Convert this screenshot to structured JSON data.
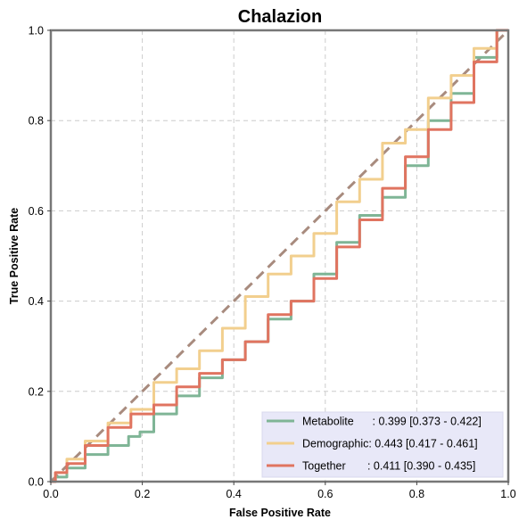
{
  "chart_data": {
    "type": "line",
    "title": "Chalazion",
    "xlabel": "False Positive Rate",
    "ylabel": "True Positive Rate",
    "xlim": [
      0,
      1
    ],
    "ylim": [
      0,
      1
    ],
    "xticks": [
      "0.0",
      "0.2",
      "0.4",
      "0.6",
      "0.8",
      "1.0"
    ],
    "yticks": [
      "0.0",
      "0.2",
      "0.4",
      "0.6",
      "0.8",
      "1.0"
    ],
    "grid": true,
    "legend_position": "lower-right",
    "diagonal": {
      "x": [
        0,
        1
      ],
      "y": [
        0,
        1
      ],
      "color": "#a88b7e",
      "style": "dashed"
    },
    "series": [
      {
        "name": "Metabolite",
        "legend_label": "Metabolite      : 0.399 [0.373 - 0.422]",
        "color": "#7fb596",
        "x": [
          0,
          0.02,
          0.05,
          0.1,
          0.15,
          0.19,
          0.2,
          0.25,
          0.3,
          0.35,
          0.4,
          0.45,
          0.5,
          0.55,
          0.6,
          0.65,
          0.7,
          0.75,
          0.8,
          0.85,
          0.9,
          0.95,
          1.0
        ],
        "y": [
          0,
          0.01,
          0.03,
          0.06,
          0.08,
          0.1,
          0.11,
          0.15,
          0.19,
          0.23,
          0.27,
          0.31,
          0.36,
          0.4,
          0.46,
          0.53,
          0.59,
          0.63,
          0.7,
          0.8,
          0.86,
          0.94,
          1.0
        ]
      },
      {
        "name": "Demographic",
        "legend_label": "Demographic: 0.443 [0.417 - 0.461]",
        "color": "#f2cf8e",
        "x": [
          0,
          0.02,
          0.05,
          0.1,
          0.15,
          0.2,
          0.25,
          0.3,
          0.35,
          0.4,
          0.45,
          0.5,
          0.55,
          0.6,
          0.65,
          0.7,
          0.75,
          0.8,
          0.85,
          0.9,
          0.95,
          1.0
        ],
        "y": [
          0,
          0.02,
          0.05,
          0.09,
          0.13,
          0.16,
          0.22,
          0.25,
          0.29,
          0.34,
          0.41,
          0.46,
          0.5,
          0.55,
          0.62,
          0.67,
          0.75,
          0.78,
          0.85,
          0.9,
          0.96,
          1.0
        ]
      },
      {
        "name": "Together",
        "legend_label": "Together       : 0.411 [0.390 - 0.435]",
        "color": "#e07460",
        "x": [
          0,
          0.02,
          0.05,
          0.1,
          0.15,
          0.2,
          0.25,
          0.3,
          0.35,
          0.4,
          0.45,
          0.5,
          0.55,
          0.6,
          0.65,
          0.7,
          0.75,
          0.8,
          0.85,
          0.9,
          0.95,
          1.0
        ],
        "y": [
          0,
          0.02,
          0.04,
          0.08,
          0.12,
          0.15,
          0.17,
          0.21,
          0.24,
          0.27,
          0.31,
          0.37,
          0.4,
          0.45,
          0.52,
          0.58,
          0.65,
          0.72,
          0.78,
          0.84,
          0.93,
          1.0
        ]
      }
    ]
  }
}
